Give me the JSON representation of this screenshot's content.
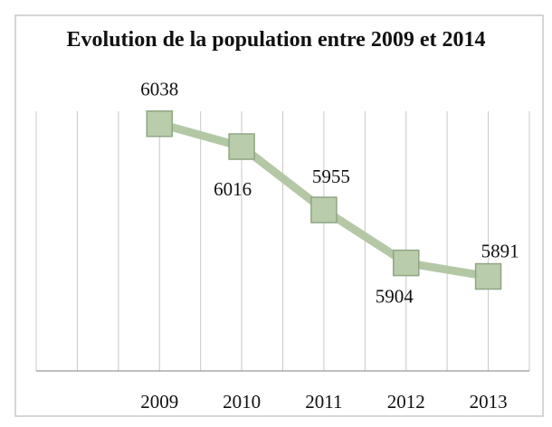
{
  "chart_data": {
    "type": "line",
    "title": "Evolution de la population entre 2009 et 2014",
    "categories": [
      "2009",
      "2010",
      "2011",
      "2012",
      "2013"
    ],
    "values": [
      6038,
      6016,
      5955,
      5904,
      5891
    ],
    "color": "#b4c8a6",
    "marker_color": "#b9cdab",
    "ylim": [
      5800,
      6050
    ],
    "grid": true
  }
}
